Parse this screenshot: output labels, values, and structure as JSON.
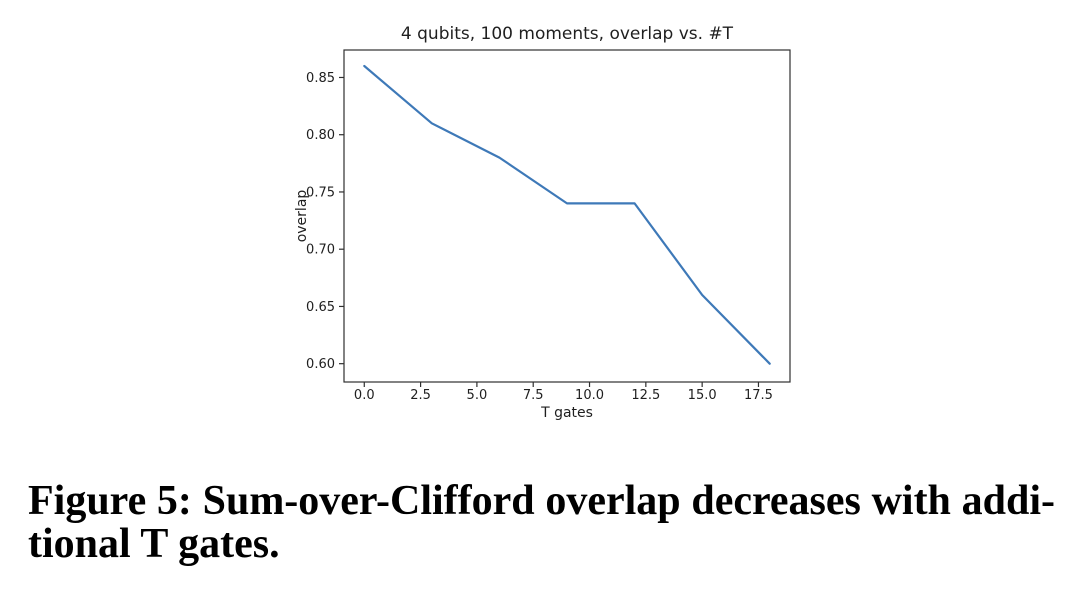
{
  "chart_data": {
    "type": "line",
    "title": "4 qubits, 100 moments, overlap vs. #T",
    "xlabel": "T gates",
    "ylabel": "overlap",
    "x": [
      0,
      3,
      6,
      9,
      12,
      15,
      18
    ],
    "y": [
      0.86,
      0.81,
      0.78,
      0.74,
      0.74,
      0.66,
      0.6
    ],
    "xlim": [
      -0.9,
      18.9
    ],
    "ylim": [
      0.584,
      0.874
    ],
    "xticks": {
      "values": [
        0,
        2.5,
        5,
        7.5,
        10,
        12.5,
        15,
        17.5
      ],
      "labels": [
        "0.0",
        "2.5",
        "5.0",
        "7.5",
        "10.0",
        "12.5",
        "15.0",
        "17.5"
      ]
    },
    "yticks": {
      "values": [
        0.85,
        0.8,
        0.75,
        0.7,
        0.65,
        0.6
      ],
      "labels": [
        "0.85",
        "0.80",
        "0.75",
        "0.70",
        "0.65",
        "0.60"
      ]
    },
    "grid": false,
    "legend": "none",
    "line_color": "#3e79b8",
    "axis_color": "#2f2f2f",
    "text_color": "#1f1f1f",
    "background_color": "#ffffff"
  },
  "caption": {
    "label": "Figure 5:",
    "line1": "Figure 5: Sum-over-Clifford overlap decreases with addi-",
    "line2": "tional T gates.",
    "full_text": "Figure 5: Sum-over-Clifford overlap decreases with additional T gates."
  }
}
